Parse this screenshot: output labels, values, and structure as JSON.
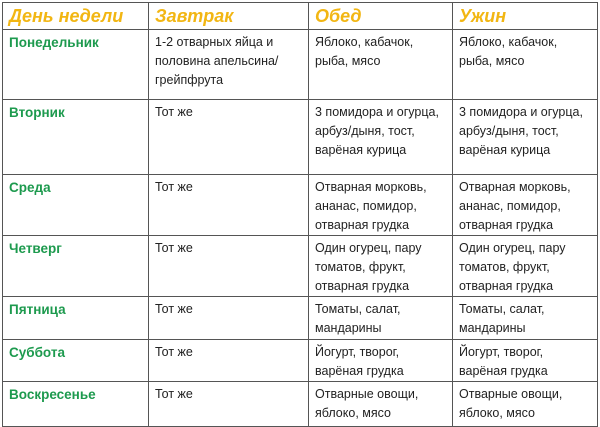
{
  "header": {
    "day": "День недели",
    "breakfast": "Завтрак",
    "lunch": "Обед",
    "dinner": "Ужин"
  },
  "colors": {
    "header": "#f2b613",
    "day": "#1d9a4e",
    "border": "#555555"
  },
  "rows": [
    {
      "day": "Понедельник",
      "breakfast": "1-2 отварных яйца и половина апельсина/грейпфрута",
      "lunch": "Яблоко, кабачок, рыба, мясо",
      "dinner": "Яблоко, кабачок, рыба, мясо"
    },
    {
      "day": "Вторник",
      "breakfast": "Тот же",
      "lunch": "3 помидора и огурца, арбуз/дыня, тост, варёная курица",
      "dinner": "3 помидора и огурца, арбуз/дыня, тост, варёная курица"
    },
    {
      "day": "Среда",
      "breakfast": "Тот же",
      "lunch": "Отварная морковь, ананас, помидор, отварная грудка",
      "dinner": "Отварная морковь, ананас, помидор, отварная грудка"
    },
    {
      "day": "Четверг",
      "breakfast": "Тот же",
      "lunch": "Один огурец, пару томатов, фрукт, отварная грудка",
      "dinner": "Один огурец, пару томатов, фрукт, отварная грудка"
    },
    {
      "day": "Пятница",
      "breakfast": "Тот же",
      "lunch": "Томаты, салат, мандарины",
      "dinner": "Томаты, салат, мандарины"
    },
    {
      "day": "Суббота",
      "breakfast": "Тот же",
      "lunch": "Йогурт, творог, варёная грудка",
      "dinner": "Йогурт, творог, варёная грудка"
    },
    {
      "day": "Воскресенье",
      "breakfast": "Тот же",
      "lunch": "Отварные овощи, яблоко, мясо",
      "dinner": "Отварные овощи, яблоко, мясо"
    }
  ]
}
